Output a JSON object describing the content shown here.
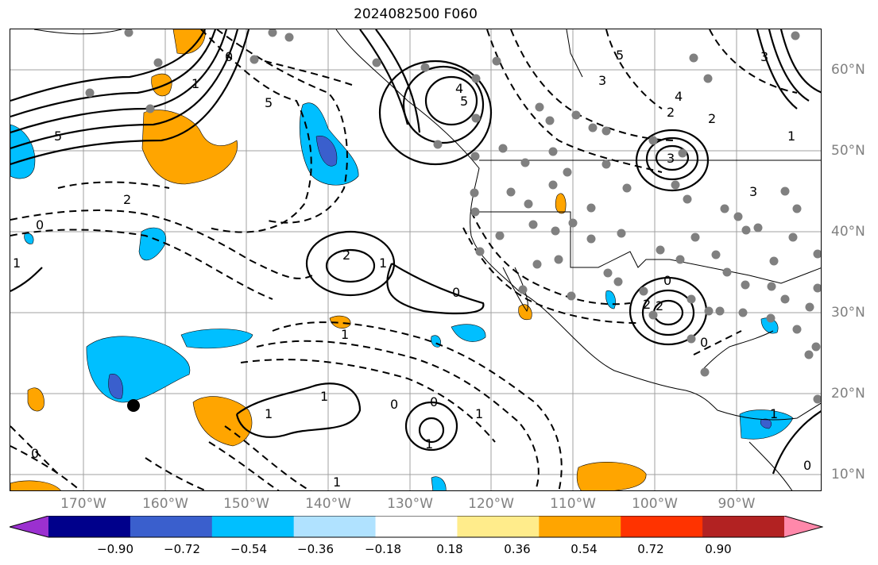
{
  "title": "2024082500 F060",
  "lon_labels": [
    "170°W",
    "160°W",
    "150°W",
    "140°W",
    "130°W",
    "120°W",
    "110°W",
    "100°W",
    "90°W"
  ],
  "lat_labels": [
    "60°N",
    "50°N",
    "40°N",
    "30°N",
    "20°N",
    "10°N"
  ],
  "colorbar": {
    "ticks": [
      "−0.90",
      "−0.72",
      "−0.54",
      "−0.36",
      "−0.18",
      "0.18",
      "0.36",
      "0.54",
      "0.72",
      "0.90"
    ],
    "colors": [
      "#9b30d0",
      "#00008b",
      "#3a5fcd",
      "#00bfff",
      "#b0e2ff",
      "#ffffff",
      "#ffec8b",
      "#ffa500",
      "#ff3300",
      "#b22222",
      "#ff88aa"
    ]
  },
  "contour_labels": [
    "5",
    "0",
    "5",
    "2",
    "0",
    "1",
    "2",
    "1",
    "0",
    "1",
    "1",
    "0",
    "1",
    "0",
    "1",
    "1",
    "4",
    "5",
    "5",
    "4",
    "3",
    "2",
    "3",
    "2",
    "1",
    "0",
    "2",
    "2",
    "3",
    "0",
    "1",
    "0",
    "0",
    "1",
    "3",
    "1"
  ],
  "colors": {
    "positive_fill": "#ffa500",
    "negative_fill": "#00bfff",
    "strong_negative_fill": "#3a5fcd",
    "station_dot": "#808080"
  }
}
